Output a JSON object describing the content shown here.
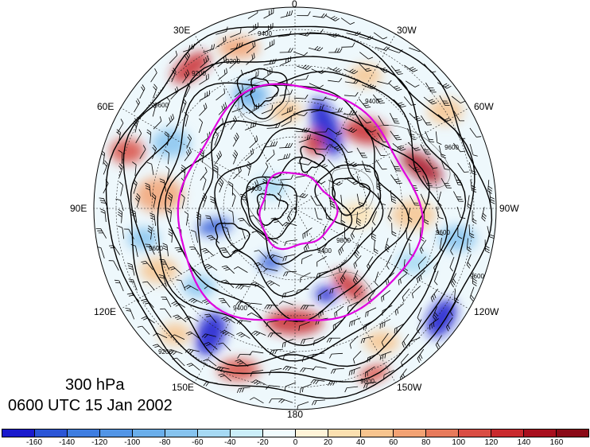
{
  "title": {
    "level": "300 hPa",
    "time": "0600 UTC 15 Jan 2002"
  },
  "longitude_labels": {
    "top": "0",
    "top_right": "30W",
    "right_upper": "60W",
    "right": "90W",
    "right_lower": "120W",
    "bottom_right": "150W",
    "bottom": "180",
    "bottom_left": "150E",
    "left_lower": "120E",
    "left": "90E",
    "left_upper": "60E",
    "top_left": "30E"
  },
  "contour_labels": [
    "9400",
    "9200",
    "9600",
    "9400",
    "9200",
    "9400",
    "9600",
    "9600",
    "9600",
    "9400",
    "9800",
    "9800",
    "9200",
    "9400",
    "9600"
  ],
  "colorbar": {
    "ticks": [
      "-160",
      "-140",
      "-120",
      "-100",
      "-80",
      "-60",
      "-40",
      "-20",
      "0",
      "20",
      "40",
      "60",
      "80",
      "100",
      "120",
      "140",
      "160"
    ],
    "colors": [
      "#1a1acd",
      "#2b55d6",
      "#3e7de0",
      "#5295e6",
      "#6aaeea",
      "#86c3ee",
      "#a6d9f3",
      "#cbeef9",
      "#f0fbfd",
      "#fff4d8",
      "#fbe0b0",
      "#f7c48e",
      "#f2a273",
      "#e77a5b",
      "#d94d43",
      "#c92a2e",
      "#a80f1e",
      "#8a0a17"
    ]
  },
  "colors": {
    "height_contour": "#000000",
    "isotach_contour": "#e000e0",
    "wind_barb": "#000000",
    "grid": "#000000"
  },
  "map": {
    "projection": "north polar stereographic",
    "fields": [
      "geopotential height contours",
      "wind barbs",
      "shaded anomaly",
      "magenta isotach contours"
    ]
  }
}
